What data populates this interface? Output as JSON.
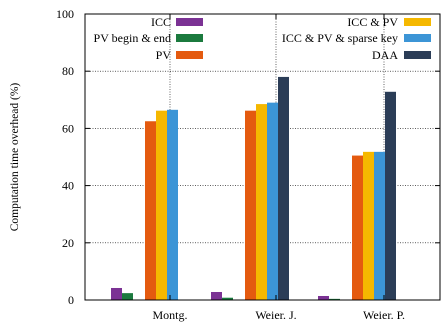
{
  "chart_data": {
    "type": "bar",
    "title": "",
    "xlabel": "",
    "ylabel": "Computation time overhead (%)",
    "ylim": [
      0,
      100
    ],
    "yticks": [
      0,
      20,
      40,
      60,
      80,
      100
    ],
    "grid": true,
    "legend_position": "top",
    "categories": [
      "Montg.",
      "Weier. J.",
      "Weier. P."
    ],
    "series": [
      {
        "name": "ICC",
        "color": "#7b3294",
        "values": [
          4.2,
          2.8,
          1.4
        ]
      },
      {
        "name": "PV begin & end",
        "color": "#1b7a3e",
        "values": [
          2.4,
          0.8,
          0.4
        ]
      },
      {
        "name": "PV",
        "color": "#e45a0f",
        "values": [
          62.5,
          66.2,
          50.5
        ]
      },
      {
        "name": "ICC & PV",
        "color": "#f5b800",
        "values": [
          66.2,
          68.5,
          51.8
        ]
      },
      {
        "name": "ICC & PV & sparse key",
        "color": "#3c95d6",
        "values": [
          66.5,
          69.0,
          51.8
        ]
      },
      {
        "name": "DAA",
        "color": "#2b3d57",
        "values": [
          null,
          78.0,
          72.8
        ]
      }
    ]
  }
}
